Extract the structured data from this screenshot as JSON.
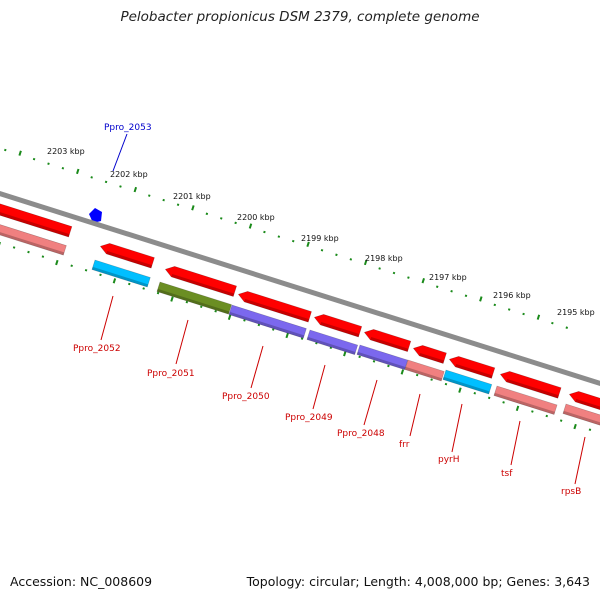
{
  "title": "Pelobacter propionicus DSM 2379, complete genome",
  "footer": {
    "accession": "Accession: NC_008609",
    "summary": "Topology: circular; Length: 4,008,000 bp; Genes: 3,643"
  },
  "colors": {
    "backbone": "#8c8c8c",
    "ticks": "#1a8a1a",
    "forward_gene": "#ff0000",
    "forward_label": "#0000cc",
    "reverse_label": "#cc0000",
    "pink": "#f08080",
    "olive": "#6b8e23",
    "purple": "#7b68ee",
    "cyan": "#00bfff",
    "marker": "#0000ff"
  },
  "scale": {
    "ticks": [
      "2203 kbp",
      "2202 kbp",
      "2201 kbp",
      "2200 kbp",
      "2199 kbp",
      "2198 kbp",
      "2197 kbp",
      "2196 kbp",
      "2195 kbp"
    ]
  },
  "genes": {
    "forward": [
      {
        "label": "Ppro_2053"
      }
    ],
    "reverse": [
      {
        "label": "Ppro_2052"
      },
      {
        "label": "Ppro_2051"
      },
      {
        "label": "Ppro_2050"
      },
      {
        "label": "Ppro_2049"
      },
      {
        "label": "Ppro_2048"
      },
      {
        "label": "frr"
      },
      {
        "label": "pyrH"
      },
      {
        "label": "tsf"
      },
      {
        "label": "rpsB"
      }
    ]
  }
}
